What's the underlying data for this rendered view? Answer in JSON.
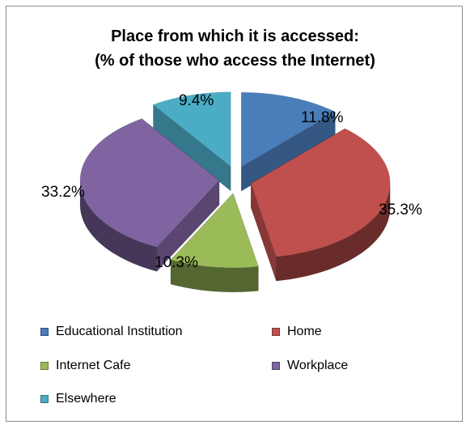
{
  "chart_data": {
    "type": "pie",
    "title_lines": [
      "Place from which it is accessed:",
      "(% of those who access the Internet)"
    ],
    "slices": [
      {
        "name": "Educational Institution",
        "value": 11.8,
        "label": "11.8%",
        "color": "#4a7ebb"
      },
      {
        "name": "Home",
        "value": 35.3,
        "label": "35.3%",
        "color": "#c0504d"
      },
      {
        "name": "Internet Cafe",
        "value": 10.3,
        "label": "10.3%",
        "color": "#9bbb59"
      },
      {
        "name": "Workplace",
        "value": 33.2,
        "label": "33.2%",
        "color": "#8064a2"
      },
      {
        "name": "Elsewhere",
        "value": 9.4,
        "label": "9.4%",
        "color": "#4bacc6"
      }
    ],
    "exploded": true,
    "style": "3d",
    "legend_position": "bottom"
  }
}
